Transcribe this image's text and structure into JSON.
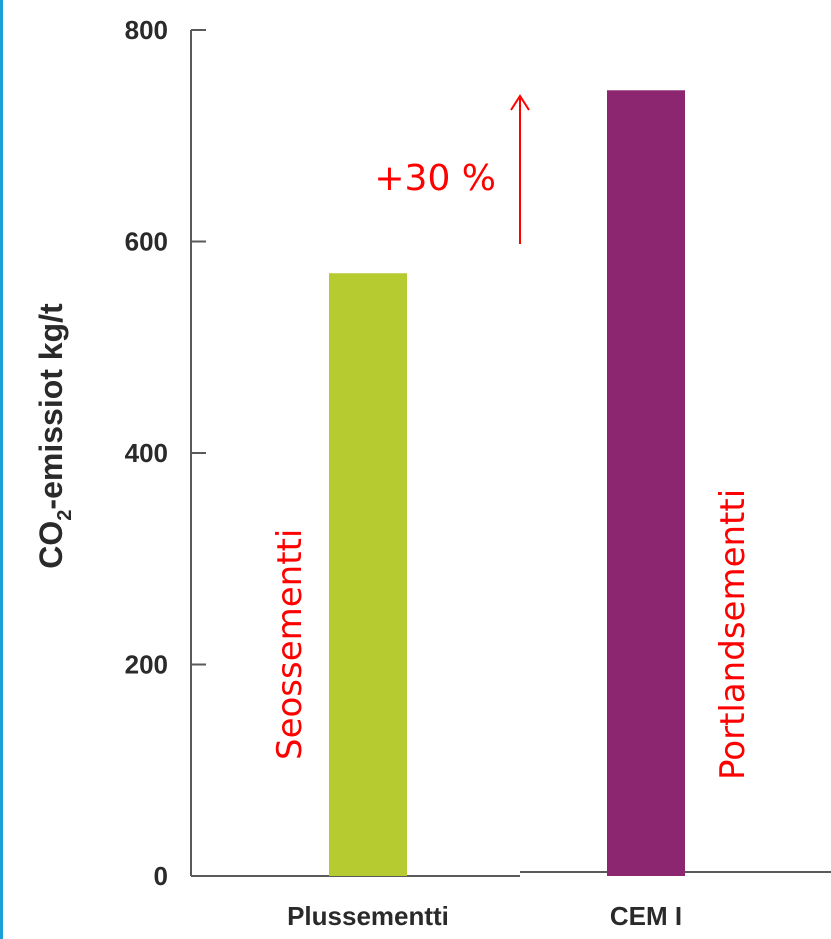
{
  "chart_data": {
    "type": "bar",
    "categories": [
      "Plussementti",
      "CEM I"
    ],
    "values": [
      570,
      743
    ],
    "ylabel": "CO",
    "ylabel_sub": "2",
    "ylabel_rest": "-emissiot kg/t",
    "ylim": [
      0,
      800
    ],
    "yticks": [
      0,
      200,
      400,
      600,
      800
    ],
    "grid": false,
    "bar_annotations": [
      "Seossementti",
      "Portlandsementti"
    ],
    "increase_label": "+30 %",
    "colors": {
      "bars": [
        "#b5cb2f",
        "#8c2670"
      ],
      "annotation": "#ff0000",
      "axis": "#5a5a5a",
      "text": "#2a2a2a",
      "left_border": "#1aa0d8"
    }
  }
}
